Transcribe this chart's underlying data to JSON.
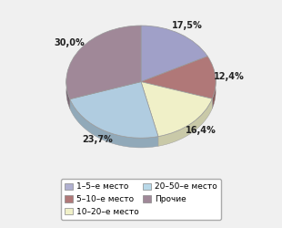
{
  "values": [
    17.5,
    12.4,
    16.4,
    23.7,
    30.0
  ],
  "labels": [
    "1–5–е место",
    "5–10–е место",
    "10–20–е место",
    "20–50–е место",
    "Прочие"
  ],
  "colors": [
    "#a0a0c8",
    "#b07878",
    "#f0f0c8",
    "#b0cce0",
    "#a08898"
  ],
  "edge_colors": [
    "#888888",
    "#888888",
    "#888888",
    "#888888",
    "#888888"
  ],
  "pct_labels": [
    "17,5%",
    "12,4%",
    "16,4%",
    "23,7%",
    "30,0%"
  ],
  "startangle": 90,
  "background_color": "#f0f0f0",
  "legend_colors": [
    "#b0b0d0",
    "#b07878",
    "#f0f0c8",
    "#b8d8e8",
    "#a08898"
  ]
}
